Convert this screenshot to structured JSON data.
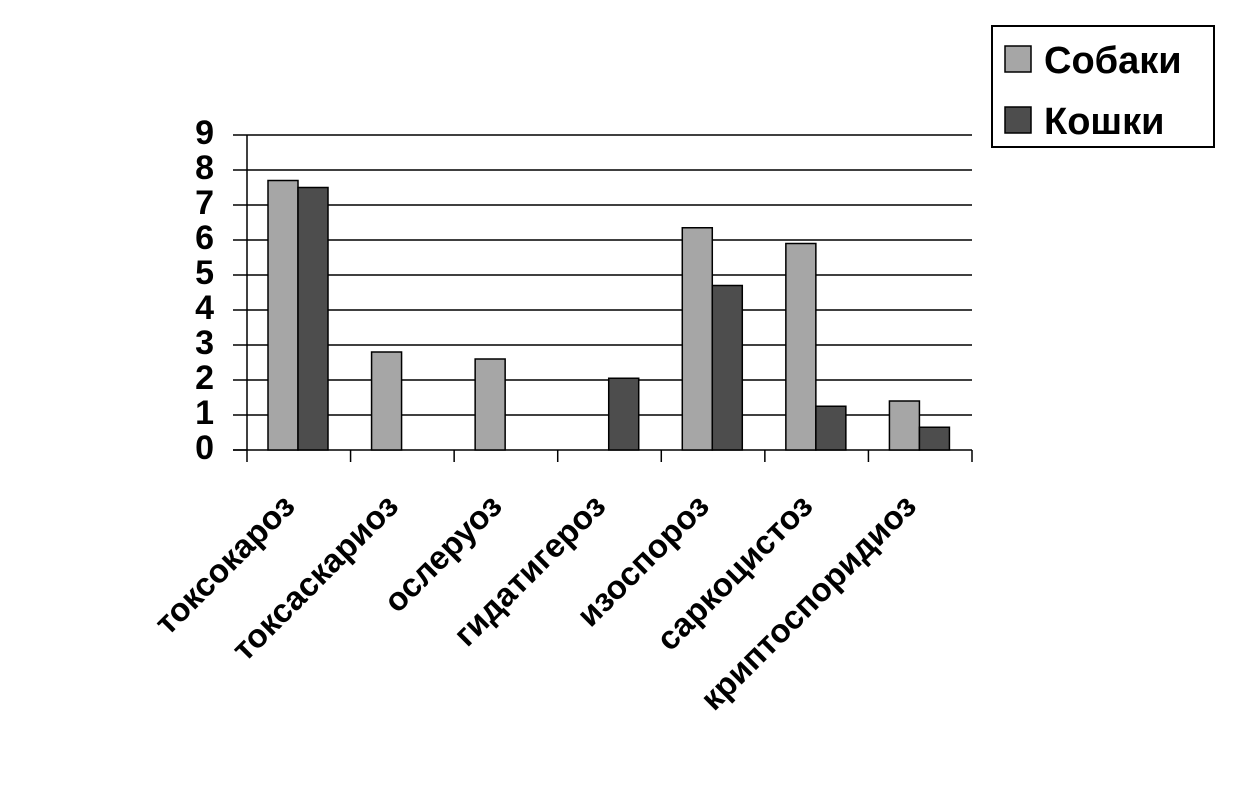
{
  "chart_data": {
    "type": "bar",
    "categories": [
      "токсокароз",
      "токсаскариоз",
      "ослеруоз",
      "гидатигероз",
      "изоспороз",
      "саркоцистоз",
      "криптоспоридиоз"
    ],
    "series": [
      {
        "name": "Собаки",
        "color": "#a6a6a6",
        "values": [
          7.7,
          2.8,
          2.6,
          0,
          6.35,
          5.9,
          1.4
        ]
      },
      {
        "name": "Кошки",
        "color": "#4d4d4d",
        "values": [
          7.5,
          0,
          0,
          2.05,
          4.7,
          1.25,
          0.65
        ]
      }
    ],
    "ylim": [
      0,
      9
    ],
    "yticks": [
      "0",
      "1",
      "2",
      "3",
      "4",
      "5",
      "6",
      "7",
      "8",
      "9"
    ],
    "grid": true,
    "legend": "top-right"
  }
}
